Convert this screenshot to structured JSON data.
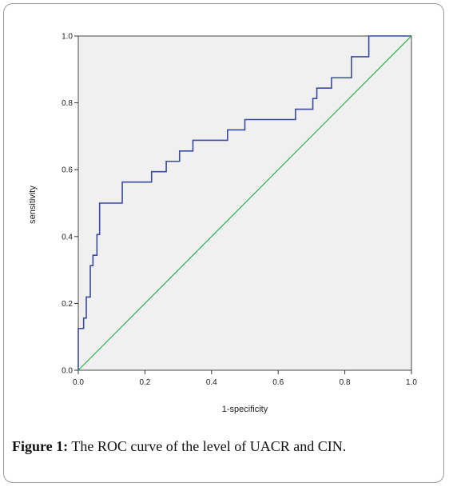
{
  "figure": {
    "caption_label": "Figure 1:",
    "caption_text": " The ROC curve of the level of UACR and CIN."
  },
  "chart_data": {
    "type": "line",
    "xlabel": "1-specificity",
    "ylabel": "sensitivity",
    "xlim": [
      0.0,
      1.0
    ],
    "ylim": [
      0.0,
      1.0
    ],
    "x_ticks": [
      "0.0",
      "0.2",
      "0.4",
      "0.6",
      "0.8",
      "1.0"
    ],
    "y_ticks": [
      "0.0",
      "0.2",
      "0.4",
      "0.6",
      "0.8",
      "1.0"
    ],
    "grid": false,
    "plot_background": "#f0f0f0",
    "series": [
      {
        "color": "#3b4a9c",
        "points": [
          [
            0.0,
            0.0
          ],
          [
            0.0,
            0.125
          ],
          [
            0.016,
            0.125
          ],
          [
            0.016,
            0.156
          ],
          [
            0.024,
            0.156
          ],
          [
            0.024,
            0.219
          ],
          [
            0.036,
            0.219
          ],
          [
            0.036,
            0.313
          ],
          [
            0.044,
            0.313
          ],
          [
            0.044,
            0.344
          ],
          [
            0.056,
            0.344
          ],
          [
            0.056,
            0.406
          ],
          [
            0.064,
            0.406
          ],
          [
            0.064,
            0.5
          ],
          [
            0.132,
            0.5
          ],
          [
            0.132,
            0.563
          ],
          [
            0.22,
            0.563
          ],
          [
            0.22,
            0.594
          ],
          [
            0.264,
            0.594
          ],
          [
            0.264,
            0.625
          ],
          [
            0.304,
            0.625
          ],
          [
            0.304,
            0.656
          ],
          [
            0.344,
            0.656
          ],
          [
            0.344,
            0.688
          ],
          [
            0.448,
            0.688
          ],
          [
            0.448,
            0.719
          ],
          [
            0.5,
            0.719
          ],
          [
            0.5,
            0.75
          ],
          [
            0.652,
            0.75
          ],
          [
            0.652,
            0.781
          ],
          [
            0.704,
            0.781
          ],
          [
            0.704,
            0.813
          ],
          [
            0.716,
            0.813
          ],
          [
            0.716,
            0.844
          ],
          [
            0.76,
            0.844
          ],
          [
            0.76,
            0.875
          ],
          [
            0.82,
            0.875
          ],
          [
            0.82,
            0.938
          ],
          [
            0.872,
            0.938
          ],
          [
            0.872,
            1.0
          ],
          [
            1.0,
            1.0
          ]
        ]
      },
      {
        "color": "#2bb24c",
        "points": [
          [
            0.0,
            0.0
          ],
          [
            1.0,
            1.0
          ]
        ]
      }
    ]
  }
}
